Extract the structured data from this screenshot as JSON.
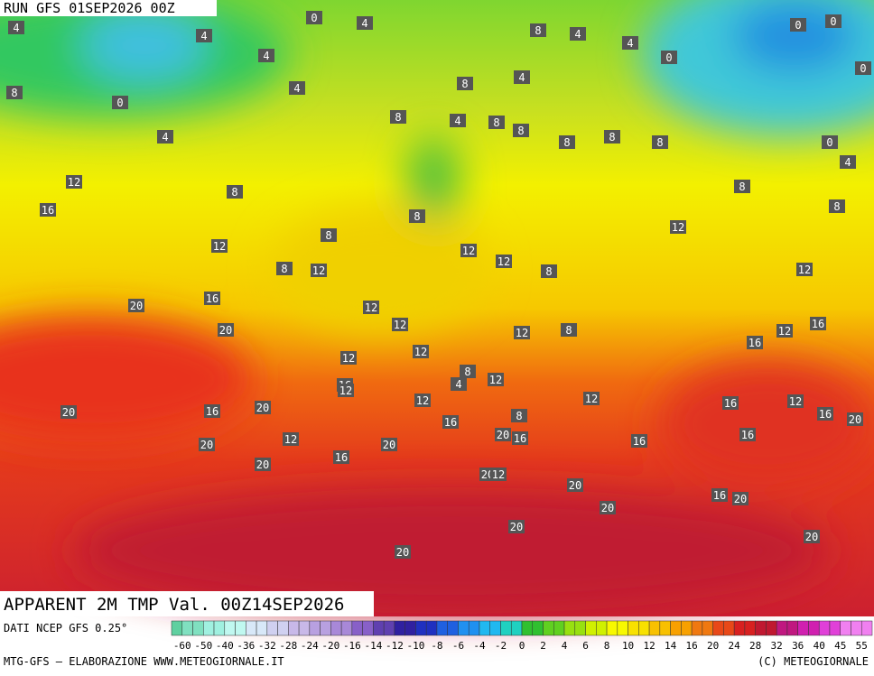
{
  "header": {
    "run": "RUN GFS 01SEP2026 00Z"
  },
  "title": "APPARENT 2M TMP Val. 00Z14SEP2026",
  "footer": {
    "source": "DATI NCEP GFS 0.25°",
    "credit": "MTG-GFS — ELABORAZIONE WWW.METEOGIORNALE.IT",
    "copyright": "(C) METEOGIORNALE"
  },
  "legend": {
    "labels": [
      -60,
      -50,
      -40,
      -36,
      -32,
      -28,
      -24,
      -20,
      -16,
      -14,
      -12,
      -10,
      -8,
      -6,
      -4,
      -2,
      0,
      2,
      4,
      6,
      8,
      10,
      12,
      14,
      16,
      20,
      24,
      28,
      32,
      36,
      40,
      45,
      55
    ]
  },
  "contour_labels": [
    0,
    4,
    4,
    4,
    4,
    4,
    0,
    8,
    4,
    8,
    8,
    4,
    4,
    0,
    0,
    0,
    0,
    0,
    4,
    8,
    4,
    4,
    8,
    8,
    8,
    8,
    8,
    12,
    16,
    8,
    8,
    8,
    8,
    12,
    8,
    12,
    12,
    12,
    8,
    8,
    12,
    12,
    20,
    16,
    20,
    12,
    12,
    12,
    8,
    12,
    16,
    16,
    12,
    12,
    8,
    12,
    4,
    16,
    12,
    12,
    12,
    16,
    12,
    20,
    16,
    20,
    16,
    20,
    8,
    16,
    20,
    16,
    12,
    20,
    20,
    16,
    16,
    20,
    16,
    20,
    12,
    20,
    16,
    20,
    20,
    20,
    20,
    20
  ]
}
